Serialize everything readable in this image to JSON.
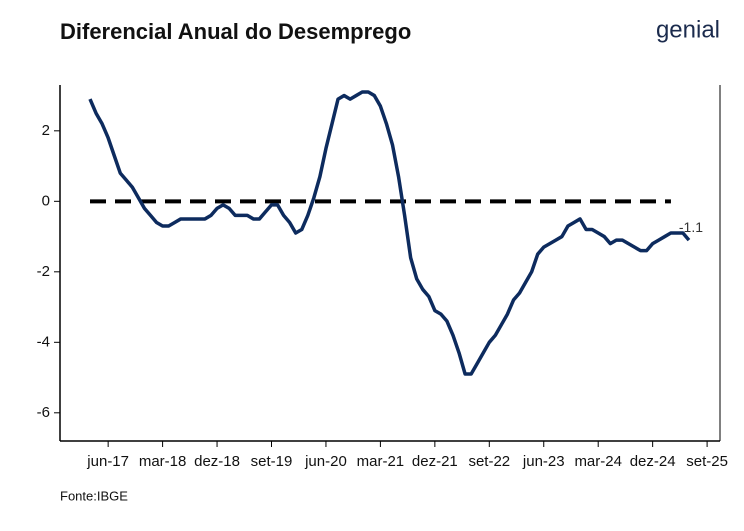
{
  "chart_data": {
    "type": "line",
    "title": "Diferencial Anual do Desemprego",
    "brand": "genial",
    "source": "Fonte:IBGE",
    "categories": [
      null,
      null,
      null,
      "jun-17",
      null,
      null,
      null,
      null,
      null,
      null,
      null,
      null,
      "mar-18",
      null,
      null,
      null,
      null,
      null,
      null,
      null,
      null,
      "dez-18",
      null,
      null,
      null,
      null,
      null,
      null,
      null,
      null,
      "set-19",
      null,
      null,
      null,
      null,
      null,
      null,
      null,
      null,
      "jun-20",
      null,
      null,
      null,
      null,
      null,
      null,
      null,
      null,
      "mar-21",
      null,
      null,
      null,
      null,
      null,
      null,
      null,
      null,
      "dez-21",
      null,
      null,
      null,
      null,
      null,
      null,
      null,
      null,
      "set-22",
      null,
      null,
      null,
      null,
      null,
      null,
      null,
      null,
      "jun-23",
      null,
      null,
      null,
      null,
      null,
      null,
      null,
      null,
      "mar-24",
      null,
      null,
      null,
      null,
      null,
      null,
      null,
      null,
      "dez-24",
      null,
      null,
      null,
      null,
      null,
      null,
      null,
      null,
      "set-25"
    ],
    "series": [
      {
        "name": "Diferencial",
        "color": "#0d2b5e",
        "values": [
          2.9,
          2.5,
          2.2,
          1.8,
          1.3,
          0.8,
          0.6,
          0.4,
          0.1,
          -0.2,
          -0.4,
          -0.6,
          -0.7,
          -0.7,
          -0.6,
          -0.5,
          -0.5,
          -0.5,
          -0.5,
          -0.5,
          -0.4,
          -0.2,
          -0.1,
          -0.2,
          -0.4,
          -0.4,
          -0.4,
          -0.5,
          -0.5,
          -0.3,
          -0.1,
          -0.1,
          -0.4,
          -0.6,
          -0.9,
          -0.8,
          -0.4,
          0.1,
          0.7,
          1.5,
          2.2,
          2.9,
          3.0,
          2.9,
          3.0,
          3.1,
          3.1,
          3.0,
          2.7,
          2.2,
          1.6,
          0.7,
          -0.4,
          -1.6,
          -2.2,
          -2.5,
          -2.7,
          -3.1,
          -3.2,
          -3.4,
          -3.8,
          -4.3,
          -4.9,
          -4.9,
          -4.6,
          -4.3,
          -4.0,
          -3.8,
          -3.5,
          -3.2,
          -2.8,
          -2.6,
          -2.3,
          -2.0,
          -1.5,
          -1.3,
          -1.2,
          -1.1,
          -1.0,
          -0.7,
          -0.6,
          -0.5,
          -0.8,
          -0.8,
          -0.9,
          -1.0,
          -1.2,
          -1.1,
          -1.1,
          -1.2,
          -1.3,
          -1.4,
          -1.4,
          -1.2,
          -1.1,
          -1.0,
          -0.9,
          -0.9,
          -0.9,
          -1.1,
          null,
          null,
          null
        ]
      }
    ],
    "reference_line": 0,
    "data_labels": "last",
    "ylim": [
      -6.8,
      3.3
    ],
    "yticks": [
      -6,
      -4,
      -2,
      0,
      2
    ]
  }
}
